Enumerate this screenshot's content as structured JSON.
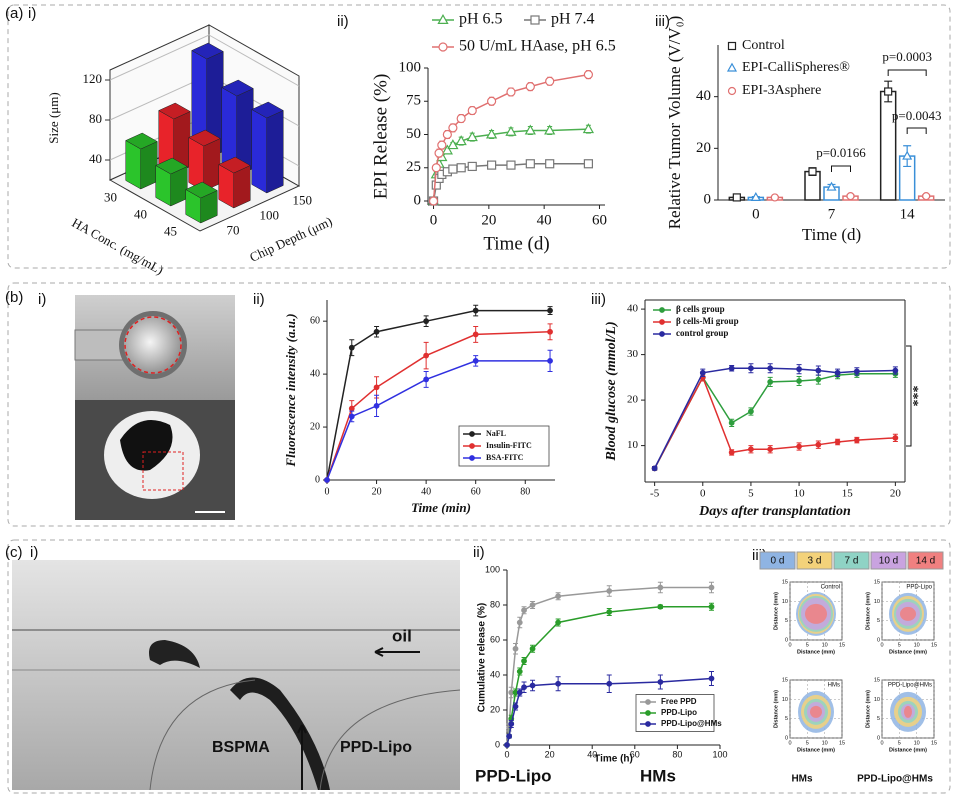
{
  "panel_labels": [
    "(a)",
    "(b)",
    "(c)"
  ],
  "sub_labels": [
    [
      "i)",
      "ii)",
      "iii)"
    ],
    [
      "i)",
      "ii)",
      "iii)"
    ],
    [
      "i)",
      "ii)",
      "iii)"
    ]
  ],
  "chart_data": [
    {
      "type": "bar3d",
      "xlabel": "HA Conc. (mg/mL)",
      "ylabel": "Chip Depth (μm)",
      "zlabel": "Size (μm)",
      "categories": [
        30,
        40,
        45
      ],
      "ycategories": [
        70,
        100,
        150
      ],
      "zlim": [
        20,
        130
      ],
      "zticks": [
        40,
        80,
        120
      ],
      "series": [
        {
          "color": "#2bc42b",
          "values": [
            60,
            52,
            45
          ]
        },
        {
          "color": "#e8232a",
          "values": [
            75,
            65,
            55
          ]
        },
        {
          "color": "#2a2ad8",
          "values": [
            120,
            100,
            95
          ]
        }
      ]
    },
    {
      "type": "line",
      "xlabel": "Time (d)",
      "ylabel": "EPI Release (%)",
      "x": [
        0,
        1,
        2,
        3,
        5,
        7,
        10,
        14,
        21,
        28,
        35,
        42,
        56
      ],
      "xlim": [
        -2,
        62
      ],
      "xticks": [
        0,
        20,
        40,
        60
      ],
      "ylim": [
        -3,
        100
      ],
      "yticks": [
        0,
        25,
        50,
        75,
        100
      ],
      "series": [
        {
          "name": "pH 6.5",
          "color": "#4caf50",
          "marker": "triangle",
          "values": [
            0,
            20,
            28,
            33,
            38,
            42,
            45,
            48,
            50,
            52,
            53,
            53,
            54
          ],
          "errors": [
            0,
            2,
            2,
            2,
            2,
            2,
            3,
            3,
            3,
            3,
            3,
            3,
            3
          ]
        },
        {
          "name": "pH 7.4",
          "color": "#777777",
          "marker": "square",
          "values": [
            0,
            12,
            17,
            20,
            22,
            24,
            25,
            26,
            27,
            27,
            28,
            28,
            28
          ],
          "errors": [
            0,
            1,
            1,
            1,
            1,
            1,
            1,
            1,
            1,
            1,
            1,
            1,
            1
          ]
        },
        {
          "name": "50 U/mL HAase, pH 6.5",
          "color": "#e07070",
          "marker": "circle",
          "values": [
            0,
            25,
            36,
            42,
            50,
            55,
            62,
            68,
            75,
            82,
            86,
            90,
            95
          ],
          "errors": [
            0,
            2,
            3,
            3,
            3,
            3,
            3,
            3,
            3,
            3,
            3,
            3,
            3
          ]
        }
      ]
    },
    {
      "type": "bar",
      "xlabel": "Time (d)",
      "ylabel": "Relative Tumor Volume (V/V₀)",
      "categories": [
        "0",
        "7",
        "14"
      ],
      "ylim": [
        0,
        60
      ],
      "yticks": [
        0,
        20,
        40
      ],
      "series": [
        {
          "name": "Control",
          "color": "#222222",
          "marker": "square",
          "values": [
            1,
            11,
            42
          ],
          "errors": [
            0.3,
            1.5,
            4
          ]
        },
        {
          "name": "EPI-CalliSpheres®",
          "color": "#3a8fd8",
          "marker": "triangle",
          "values": [
            1,
            5,
            17
          ],
          "errors": [
            0.3,
            1,
            4
          ]
        },
        {
          "name": "EPI-3Asphere",
          "color": "#e07070",
          "marker": "circle",
          "values": [
            1,
            1.5,
            1.5
          ],
          "errors": [
            0.3,
            0.5,
            0.5
          ]
        }
      ],
      "annotations": [
        "p=0.0166",
        "p=0.0003",
        "p=0.0043"
      ]
    },
    {
      "type": "line",
      "xlabel": "Time (min)",
      "ylabel": "Fluorescence intensity (a.u.)",
      "x": [
        0,
        10,
        20,
        40,
        60,
        90
      ],
      "xlim": [
        0,
        92
      ],
      "xticks": [
        0,
        20,
        40,
        60,
        80
      ],
      "ylim": [
        0,
        68
      ],
      "yticks": [
        0,
        20,
        40,
        60
      ],
      "legend": "bottom-right",
      "series": [
        {
          "name": "NaFL",
          "color": "#222222",
          "marker": "circle",
          "values": [
            0,
            50,
            56,
            60,
            64,
            64
          ],
          "errors": [
            0,
            3,
            2,
            2,
            2,
            1.5
          ]
        },
        {
          "name": "Insulin-FITC",
          "color": "#e03030",
          "marker": "circle",
          "values": [
            0,
            27,
            35,
            47,
            55,
            56
          ],
          "errors": [
            0,
            3,
            4,
            5,
            3,
            3
          ]
        },
        {
          "name": "BSA-FITC",
          "color": "#3030e0",
          "marker": "circle",
          "values": [
            0,
            24,
            28,
            38,
            45,
            45
          ],
          "errors": [
            0,
            2,
            4,
            3,
            2,
            4
          ]
        }
      ]
    },
    {
      "type": "line",
      "xlabel": "Days after transplantation",
      "ylabel": "Blood glucose (mmol/L)",
      "x": [
        -5,
        0,
        3,
        5,
        7,
        10,
        12,
        14,
        16,
        20
      ],
      "xlim": [
        -6,
        21
      ],
      "xticks": [
        -5,
        0,
        5,
        10,
        15,
        20
      ],
      "ylim": [
        2,
        42
      ],
      "yticks": [
        10,
        20,
        30,
        40
      ],
      "legend": "top-left",
      "annotations": [
        "***"
      ],
      "series": [
        {
          "name": "β cells group",
          "color": "#2e9e3e",
          "marker": "circle",
          "values": [
            5,
            25,
            15,
            17.5,
            24,
            24.2,
            24.5,
            25.5,
            25.8,
            25.8
          ],
          "errors": [
            0.4,
            0.8,
            0.8,
            0.8,
            1,
            1,
            1,
            0.8,
            0.8,
            0.8
          ]
        },
        {
          "name": "β cells-Mi group",
          "color": "#e03030",
          "marker": "circle",
          "values": [
            5,
            25,
            8.5,
            9.2,
            9.2,
            9.8,
            10.2,
            10.8,
            11.2,
            11.7
          ],
          "errors": [
            0.4,
            0.8,
            0.6,
            0.8,
            0.8,
            0.8,
            0.8,
            0.6,
            0.6,
            0.8
          ]
        },
        {
          "name": "control group",
          "color": "#2a2aa0",
          "marker": "circle",
          "values": [
            5,
            26,
            27,
            27,
            27,
            26.8,
            26.5,
            26,
            26.3,
            26.5
          ],
          "errors": [
            0.4,
            0.8,
            0.6,
            1,
            1,
            1,
            1,
            0.8,
            0.8,
            0.8
          ]
        }
      ]
    },
    {
      "type": "line",
      "xlabel": "Time (h)",
      "ylabel": "Cumulative release (%)",
      "x": [
        0,
        1,
        2,
        4,
        6,
        8,
        12,
        24,
        48,
        72,
        96
      ],
      "xlim": [
        0,
        100
      ],
      "xticks": [
        0,
        20,
        40,
        60,
        80,
        100
      ],
      "ylim": [
        0,
        100
      ],
      "yticks": [
        0,
        20,
        40,
        60,
        80,
        100
      ],
      "legend": "bottom-right",
      "series": [
        {
          "name": "Free PPD",
          "color": "#999999",
          "marker": "circle",
          "values": [
            0,
            10,
            30,
            55,
            70,
            77,
            80,
            85,
            88,
            90,
            90
          ],
          "errors": [
            0,
            2,
            3,
            3,
            3,
            2,
            2,
            2,
            3,
            3,
            3
          ]
        },
        {
          "name": "PPD-Lipo",
          "color": "#2a9d2a",
          "marker": "circle",
          "values": [
            0,
            5,
            15,
            30,
            42,
            48,
            55,
            70,
            76,
            79,
            79
          ],
          "errors": [
            0,
            1,
            2,
            2,
            2,
            2,
            2,
            2,
            2,
            1,
            2
          ]
        },
        {
          "name": "PPD-Lipo@HMs",
          "color": "#2a2aa0",
          "marker": "circle",
          "values": [
            0,
            5,
            12,
            22,
            30,
            33,
            34,
            35,
            35,
            36,
            38
          ],
          "errors": [
            0,
            1,
            2,
            2,
            2,
            3,
            3,
            4,
            5,
            4,
            4
          ]
        }
      ]
    }
  ],
  "c_image_labels": [
    "oil",
    "BSPMA",
    "PPD-Lipo"
  ],
  "c_captions": [
    "PPD-Lipo",
    "HMs"
  ],
  "contour": {
    "legend": [
      "0 d",
      "3 d",
      "7 d",
      "10 d",
      "14 d"
    ],
    "legend_colors": [
      "#8fb4e3",
      "#f3d27a",
      "#8fd3c5",
      "#c9a3e0",
      "#f08080"
    ],
    "plots": [
      "Control",
      "PPD-Lipo",
      "HMs",
      "PPD-Lipo@HMs"
    ],
    "xlabel": "Distance (mm)",
    "ylabel": "Distance (mm)",
    "ticks": [
      0,
      5,
      10,
      15
    ],
    "captions": [
      "HMs",
      "PPD-Lipo@HMs"
    ]
  }
}
